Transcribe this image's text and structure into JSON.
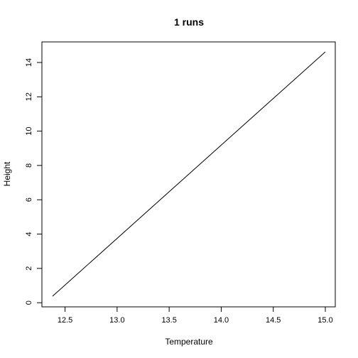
{
  "chart_data": {
    "type": "line",
    "title": "1 runs",
    "xlabel": "Temperature",
    "ylabel": "Height",
    "xlim": [
      12.38,
      15.0
    ],
    "ylim": [
      0.38,
      14.62
    ],
    "xticks": [
      12.5,
      13.0,
      13.5,
      14.0,
      14.5,
      15.0
    ],
    "xtick_labels": [
      "12.5",
      "13.0",
      "13.5",
      "14.0",
      "14.5",
      "15.0"
    ],
    "yticks": [
      0,
      2,
      4,
      6,
      8,
      10,
      12,
      14
    ],
    "ytick_labels": [
      "0",
      "2",
      "4",
      "6",
      "8",
      "10",
      "12",
      "14"
    ],
    "grid": false,
    "series": [
      {
        "color": "#000000",
        "x": [
          12.38,
          15.0
        ],
        "y": [
          0.38,
          14.62
        ]
      }
    ]
  }
}
